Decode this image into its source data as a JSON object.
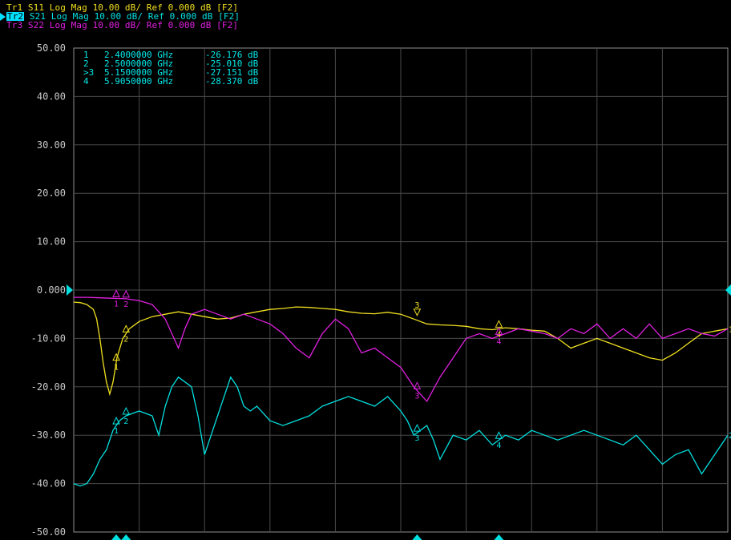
{
  "traces": [
    {
      "id": "Tr1",
      "param": "S11",
      "format": "Log Mag",
      "scale": "10.00 dB/",
      "ref": "Ref 0.000 dB",
      "tag": "[F2]",
      "color": "#f0e020",
      "active": false
    },
    {
      "id": "Tr2",
      "param": "S21",
      "format": "Log Mag",
      "scale": "10.00 dB/",
      "ref": "Ref 0.000 dB",
      "tag": "[F2]",
      "color": "#00e0e0",
      "active": true
    },
    {
      "id": "Tr3",
      "param": "S22",
      "format": "Log Mag",
      "scale": "10.00 dB/",
      "ref": "Ref 0.000 dB",
      "tag": "[F2]",
      "color": "#e020e0",
      "active": false
    }
  ],
  "marker_table": [
    {
      "label": " 1",
      "freq": "2.4000000 GHz",
      "value": "-26.176 dB"
    },
    {
      "label": " 2",
      "freq": "2.5000000 GHz",
      "value": "-25.010 dB"
    },
    {
      "label": ">3",
      "freq": "5.1500000 GHz",
      "value": "-27.151 dB"
    },
    {
      "label": " 4",
      "freq": "5.9050000 GHz",
      "value": "-28.370 dB"
    }
  ],
  "chart_data": {
    "type": "line",
    "y_tick_labels": [
      "50.00",
      "40.00",
      "30.00",
      "20.00",
      "10.00",
      "0.000",
      "-10.00",
      "-20.00",
      "-30.00",
      "-40.00",
      "-50.00"
    ],
    "ylim": [
      -50,
      50
    ],
    "x_divisions": 10,
    "grid": true,
    "series": [
      {
        "name": "S11",
        "color": "#f0e020",
        "x": [
          0,
          0.1,
          0.2,
          0.3,
          0.35,
          0.4,
          0.45,
          0.5,
          0.55,
          0.6,
          0.66,
          0.75,
          0.85,
          1.0,
          1.2,
          1.4,
          1.6,
          1.8,
          2.0,
          2.2,
          2.4,
          2.6,
          2.8,
          3.0,
          3.2,
          3.4,
          3.6,
          3.8,
          4.0,
          4.2,
          4.4,
          4.6,
          4.8,
          5.0,
          5.2,
          5.4,
          5.6,
          5.8,
          6.0,
          6.2,
          6.4,
          6.6,
          6.8,
          7.0,
          7.2,
          7.4,
          7.6,
          7.8,
          8.0,
          8.2,
          8.4,
          8.6,
          8.8,
          9.0,
          9.2,
          9.4,
          9.6,
          9.8,
          10.0
        ],
        "y": [
          -2.5,
          -2.6,
          -3,
          -4,
          -6,
          -10,
          -15,
          -19,
          -21.5,
          -19,
          -14,
          -10,
          -8,
          -6.5,
          -5.5,
          -5,
          -4.5,
          -5,
          -5.5,
          -6,
          -5.8,
          -5,
          -4.5,
          -4,
          -3.8,
          -3.5,
          -3.6,
          -3.8,
          -4,
          -4.5,
          -4.8,
          -4.9,
          -4.6,
          -5,
          -6,
          -7,
          -7.2,
          -7.3,
          -7.5,
          -8,
          -8.2,
          -7.8,
          -8,
          -8.3,
          -8.5,
          -10,
          -12,
          -11,
          -10,
          -11,
          -12,
          -13,
          -14,
          -14.5,
          -13,
          -11,
          -9,
          -8.5,
          -8
        ]
      },
      {
        "name": "S21",
        "color": "#00e0e0",
        "x": [
          0,
          0.1,
          0.2,
          0.3,
          0.4,
          0.5,
          0.6,
          0.7,
          0.8,
          0.9,
          1.0,
          1.2,
          1.3,
          1.4,
          1.5,
          1.6,
          1.8,
          1.9,
          2.0,
          2.2,
          2.4,
          2.5,
          2.6,
          2.7,
          2.8,
          3.0,
          3.2,
          3.4,
          3.6,
          3.8,
          4.0,
          4.2,
          4.4,
          4.6,
          4.8,
          5.0,
          5.1,
          5.2,
          5.4,
          5.5,
          5.6,
          5.8,
          6.0,
          6.2,
          6.4,
          6.6,
          6.8,
          7.0,
          7.2,
          7.4,
          7.6,
          7.8,
          8.0,
          8.2,
          8.4,
          8.6,
          8.8,
          9.0,
          9.2,
          9.4,
          9.6,
          9.8,
          10.0
        ],
        "y": [
          -40,
          -40.5,
          -40,
          -38,
          -35,
          -33,
          -29,
          -27,
          -26,
          -25.5,
          -25,
          -26,
          -30,
          -24,
          -20,
          -18,
          -20,
          -26,
          -34,
          -26,
          -18,
          -20,
          -24,
          -25,
          -24,
          -27,
          -28,
          -27,
          -26,
          -24,
          -23,
          -22,
          -23,
          -24,
          -22,
          -25,
          -27,
          -30,
          -28,
          -31,
          -35,
          -30,
          -31,
          -29,
          -32,
          -30,
          -31,
          -29,
          -30,
          -31,
          -30,
          -29,
          -30,
          -31,
          -32,
          -30,
          -33,
          -36,
          -34,
          -33,
          -38,
          -34,
          -30
        ]
      },
      {
        "name": "S22",
        "color": "#e020e0",
        "x": [
          0,
          0.2,
          0.4,
          0.6,
          0.8,
          1.0,
          1.2,
          1.4,
          1.5,
          1.6,
          1.7,
          1.8,
          2.0,
          2.2,
          2.4,
          2.6,
          2.8,
          3.0,
          3.2,
          3.4,
          3.6,
          3.8,
          4.0,
          4.2,
          4.4,
          4.6,
          4.8,
          5.0,
          5.2,
          5.4,
          5.6,
          5.8,
          6.0,
          6.2,
          6.4,
          6.6,
          6.8,
          7.0,
          7.2,
          7.4,
          7.6,
          7.8,
          8.0,
          8.2,
          8.4,
          8.6,
          8.8,
          9.0,
          9.2,
          9.4,
          9.6,
          9.8,
          10.0
        ],
        "y": [
          -1.5,
          -1.5,
          -1.6,
          -1.7,
          -1.8,
          -2.2,
          -3,
          -6,
          -9,
          -12,
          -8,
          -5,
          -4,
          -5,
          -6,
          -5,
          -6,
          -7,
          -9,
          -12,
          -14,
          -9,
          -6,
          -8,
          -13,
          -12,
          -14,
          -16,
          -20,
          -23,
          -18,
          -14,
          -10,
          -9,
          -10,
          -9,
          -8,
          -8.5,
          -9,
          -10,
          -8,
          -9,
          -7,
          -10,
          -8,
          -10,
          -7,
          -10,
          -9,
          -8,
          -9,
          -9.5,
          -8
        ]
      }
    ],
    "markers": [
      {
        "label": "1",
        "x": 0.65
      },
      {
        "label": "2",
        "x": 0.8
      },
      {
        "label": "3",
        "x": 5.25
      },
      {
        "label": "4",
        "x": 6.5
      }
    ],
    "trace_end_labels": [
      "1",
      "2"
    ]
  }
}
